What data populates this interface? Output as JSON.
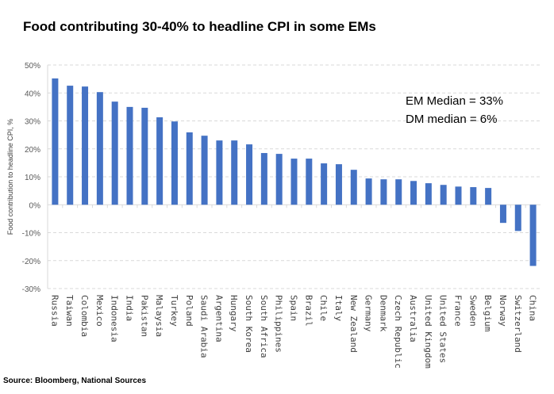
{
  "chart_data": {
    "type": "bar",
    "title": "Food contributing 30-40% to headline CPI in some EMs",
    "xlabel": "",
    "ylabel": "Food contribution to headline CPI, %",
    "ylim": [
      -30,
      50
    ],
    "yticks": [
      "50%",
      "40%",
      "30%",
      "20%",
      "10%",
      "0%",
      "-10%",
      "-20%",
      "-30%"
    ],
    "grid": true,
    "bar_color": "#4472C4",
    "categories": [
      "Russia",
      "Taiwan",
      "Colombia",
      "Mexico",
      "Indonesia",
      "India",
      "Pakistan",
      "Malaysia",
      "Turkey",
      "Poland",
      "Saudi Arabia",
      "Argentina",
      "Hungary",
      "South Korea",
      "South Africa",
      "Philippines",
      "Spain",
      "Brazil",
      "Chile",
      "Italy",
      "New Zealand",
      "Germany",
      "Denmark",
      "Czech Republic",
      "Australia",
      "United Kingdom",
      "United States",
      "France",
      "Sweden",
      "Belgium",
      "Norway",
      "Switzerland",
      "China"
    ],
    "values": [
      45.2,
      42.6,
      42.3,
      40.3,
      36.9,
      35.0,
      34.7,
      31.3,
      29.8,
      25.9,
      24.7,
      23.0,
      23.0,
      21.6,
      18.5,
      18.2,
      16.5,
      16.5,
      14.8,
      14.5,
      12.5,
      9.4,
      9.1,
      9.1,
      8.5,
      7.7,
      7.1,
      6.5,
      6.3,
      6.0,
      -6.5,
      -9.4,
      -21.9
    ],
    "annotations": [
      "EM Median = 33%",
      "DM median = 6%"
    ]
  },
  "source": "Source: Bloomberg, National Sources"
}
